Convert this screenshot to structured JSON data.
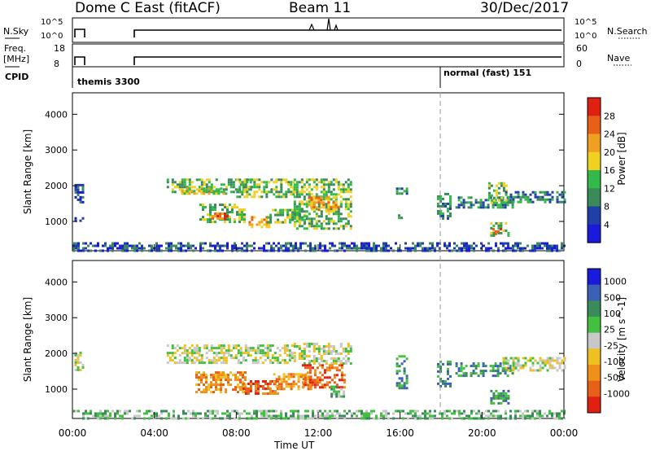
{
  "header": {
    "station": "Dome C East (fitACF)",
    "beam": "Beam 11",
    "date": "30/Dec/2017"
  },
  "top_panels": {
    "nsky_label": "N.Sky",
    "nsky_ticks": [
      "10^5",
      "10^0"
    ],
    "nsearch_label": "N.Search",
    "nsearch_ticks": [
      "10^5",
      "10^0"
    ],
    "freq_label": "Freq.",
    "freq_unit": "[MHz]",
    "freq_ticks": [
      "18",
      "8"
    ],
    "nave_label": "Nave",
    "nave_ticks": [
      "60",
      "0"
    ],
    "cpid_label": "CPID",
    "cpid_segments": [
      {
        "label": "themis 3300",
        "start_hour": 0.0
      },
      {
        "label": "normal (fast) 151",
        "start_hour": 18.0
      }
    ]
  },
  "x_axis": {
    "label": "Time UT",
    "ticks": [
      "00:00",
      "04:00",
      "08:00",
      "12:00",
      "16:00",
      "20:00",
      "00:00"
    ]
  },
  "colors": {
    "power": [
      "#1a1adc",
      "#2040a8",
      "#3a8a5a",
      "#33b84a",
      "#f0d020",
      "#f0a020",
      "#e86018",
      "#e02010"
    ],
    "velocity": [
      "#1a1adc",
      "#3a60b8",
      "#3a8a5a",
      "#44c040",
      "#c8c8c8",
      "#f0c020",
      "#f09018",
      "#e86018",
      "#e02010"
    ]
  },
  "chart_data": [
    {
      "type": "heatmap",
      "panel": "power",
      "ylabel": "Slant Range [km]",
      "yticks": [
        1000,
        2000,
        3000,
        4000
      ],
      "ylim": [
        180,
        4600
      ],
      "xlim": [
        0,
        24
      ],
      "colorbar_label": "Power [dB]",
      "colorbar_ticks": [
        "4",
        "8",
        "12",
        "16",
        "20",
        "24",
        "28"
      ],
      "colorbar_range": [
        0,
        32
      ],
      "regions": [
        {
          "x0": 0.1,
          "x1": 0.55,
          "y0": 1550,
          "y1": 2050,
          "level": 1
        },
        {
          "x0": 0.1,
          "x1": 0.55,
          "y0": 1020,
          "y1": 1120,
          "level": 1
        },
        {
          "x0": 4.6,
          "x1": 8.7,
          "y0": 1850,
          "y1": 2200,
          "level": 3
        },
        {
          "x0": 5.3,
          "x1": 7.5,
          "y0": 1750,
          "y1": 1950,
          "level": 4
        },
        {
          "x0": 6.2,
          "x1": 8.4,
          "y0": 1000,
          "y1": 1500,
          "level": 3
        },
        {
          "x0": 6.8,
          "x1": 7.6,
          "y0": 1050,
          "y1": 1250,
          "level": 6
        },
        {
          "x0": 8.0,
          "x1": 10.8,
          "y0": 1700,
          "y1": 2200,
          "level": 3
        },
        {
          "x0": 8.6,
          "x1": 9.6,
          "y0": 850,
          "y1": 1150,
          "level": 5
        },
        {
          "x0": 9.5,
          "x1": 11.3,
          "y0": 1000,
          "y1": 1350,
          "level": 3
        },
        {
          "x0": 10.8,
          "x1": 13.6,
          "y0": 800,
          "y1": 2200,
          "level": 3
        },
        {
          "x0": 11.5,
          "x1": 13.0,
          "y0": 1350,
          "y1": 1700,
          "level": 5
        },
        {
          "x0": 15.8,
          "x1": 16.3,
          "y0": 1800,
          "y1": 1950,
          "level": 2
        },
        {
          "x0": 15.9,
          "x1": 16.1,
          "y0": 1000,
          "y1": 1200,
          "level": 3
        },
        {
          "x0": 17.8,
          "x1": 18.4,
          "y0": 1100,
          "y1": 1800,
          "level": 2
        },
        {
          "x0": 18.7,
          "x1": 21.5,
          "y0": 1400,
          "y1": 1700,
          "level": 2
        },
        {
          "x0": 20.3,
          "x1": 21.2,
          "y0": 1500,
          "y1": 2100,
          "level": 3
        },
        {
          "x0": 21.0,
          "x1": 24.0,
          "y0": 1550,
          "y1": 1850,
          "level": 2
        },
        {
          "x0": 20.4,
          "x1": 21.3,
          "y0": 580,
          "y1": 980,
          "level": 3
        },
        {
          "x0": 20.5,
          "x1": 20.9,
          "y0": 640,
          "y1": 820,
          "level": 6
        },
        {
          "x0": 0.0,
          "x1": 24.0,
          "y0": 200,
          "y1": 420,
          "level": 1
        }
      ]
    },
    {
      "type": "heatmap",
      "panel": "velocity",
      "ylabel": "Slant Range [km]",
      "yticks": [
        1000,
        2000,
        3000,
        4000
      ],
      "ylim": [
        180,
        4600
      ],
      "xlim": [
        0,
        24
      ],
      "colorbar_label": "Velocity [m s^-1]",
      "colorbar_ticks": [
        "1000",
        "500",
        "100",
        "25",
        "-25",
        "-100",
        "-500",
        "-1000"
      ],
      "regions": [
        {
          "x0": 0.1,
          "x1": 0.55,
          "y0": 1550,
          "y1": 2050,
          "level": 4
        },
        {
          "x0": 4.6,
          "x1": 10.9,
          "y0": 1750,
          "y1": 2250,
          "level": 4
        },
        {
          "x0": 6.0,
          "x1": 8.4,
          "y0": 950,
          "y1": 1500,
          "level": 6
        },
        {
          "x0": 8.3,
          "x1": 10.0,
          "y0": 850,
          "y1": 1250,
          "level": 7
        },
        {
          "x0": 9.8,
          "x1": 11.6,
          "y0": 1000,
          "y1": 1450,
          "level": 6
        },
        {
          "x0": 10.8,
          "x1": 13.6,
          "y0": 1700,
          "y1": 2300,
          "level": 4
        },
        {
          "x0": 11.2,
          "x1": 13.3,
          "y0": 1050,
          "y1": 1700,
          "level": 7
        },
        {
          "x0": 12.6,
          "x1": 13.2,
          "y0": 800,
          "y1": 1100,
          "level": 3
        },
        {
          "x0": 15.8,
          "x1": 16.3,
          "y0": 1000,
          "y1": 1950,
          "level": 2
        },
        {
          "x0": 17.8,
          "x1": 18.4,
          "y0": 1100,
          "y1": 1800,
          "level": 2
        },
        {
          "x0": 18.7,
          "x1": 21.6,
          "y0": 1350,
          "y1": 1750,
          "level": 2
        },
        {
          "x0": 21.0,
          "x1": 24.0,
          "y0": 1550,
          "y1": 1900,
          "level": 4
        },
        {
          "x0": 20.4,
          "x1": 21.3,
          "y0": 580,
          "y1": 980,
          "level": 2
        },
        {
          "x0": 0.0,
          "x1": 24.0,
          "y0": 200,
          "y1": 420,
          "level": 3
        }
      ]
    }
  ]
}
